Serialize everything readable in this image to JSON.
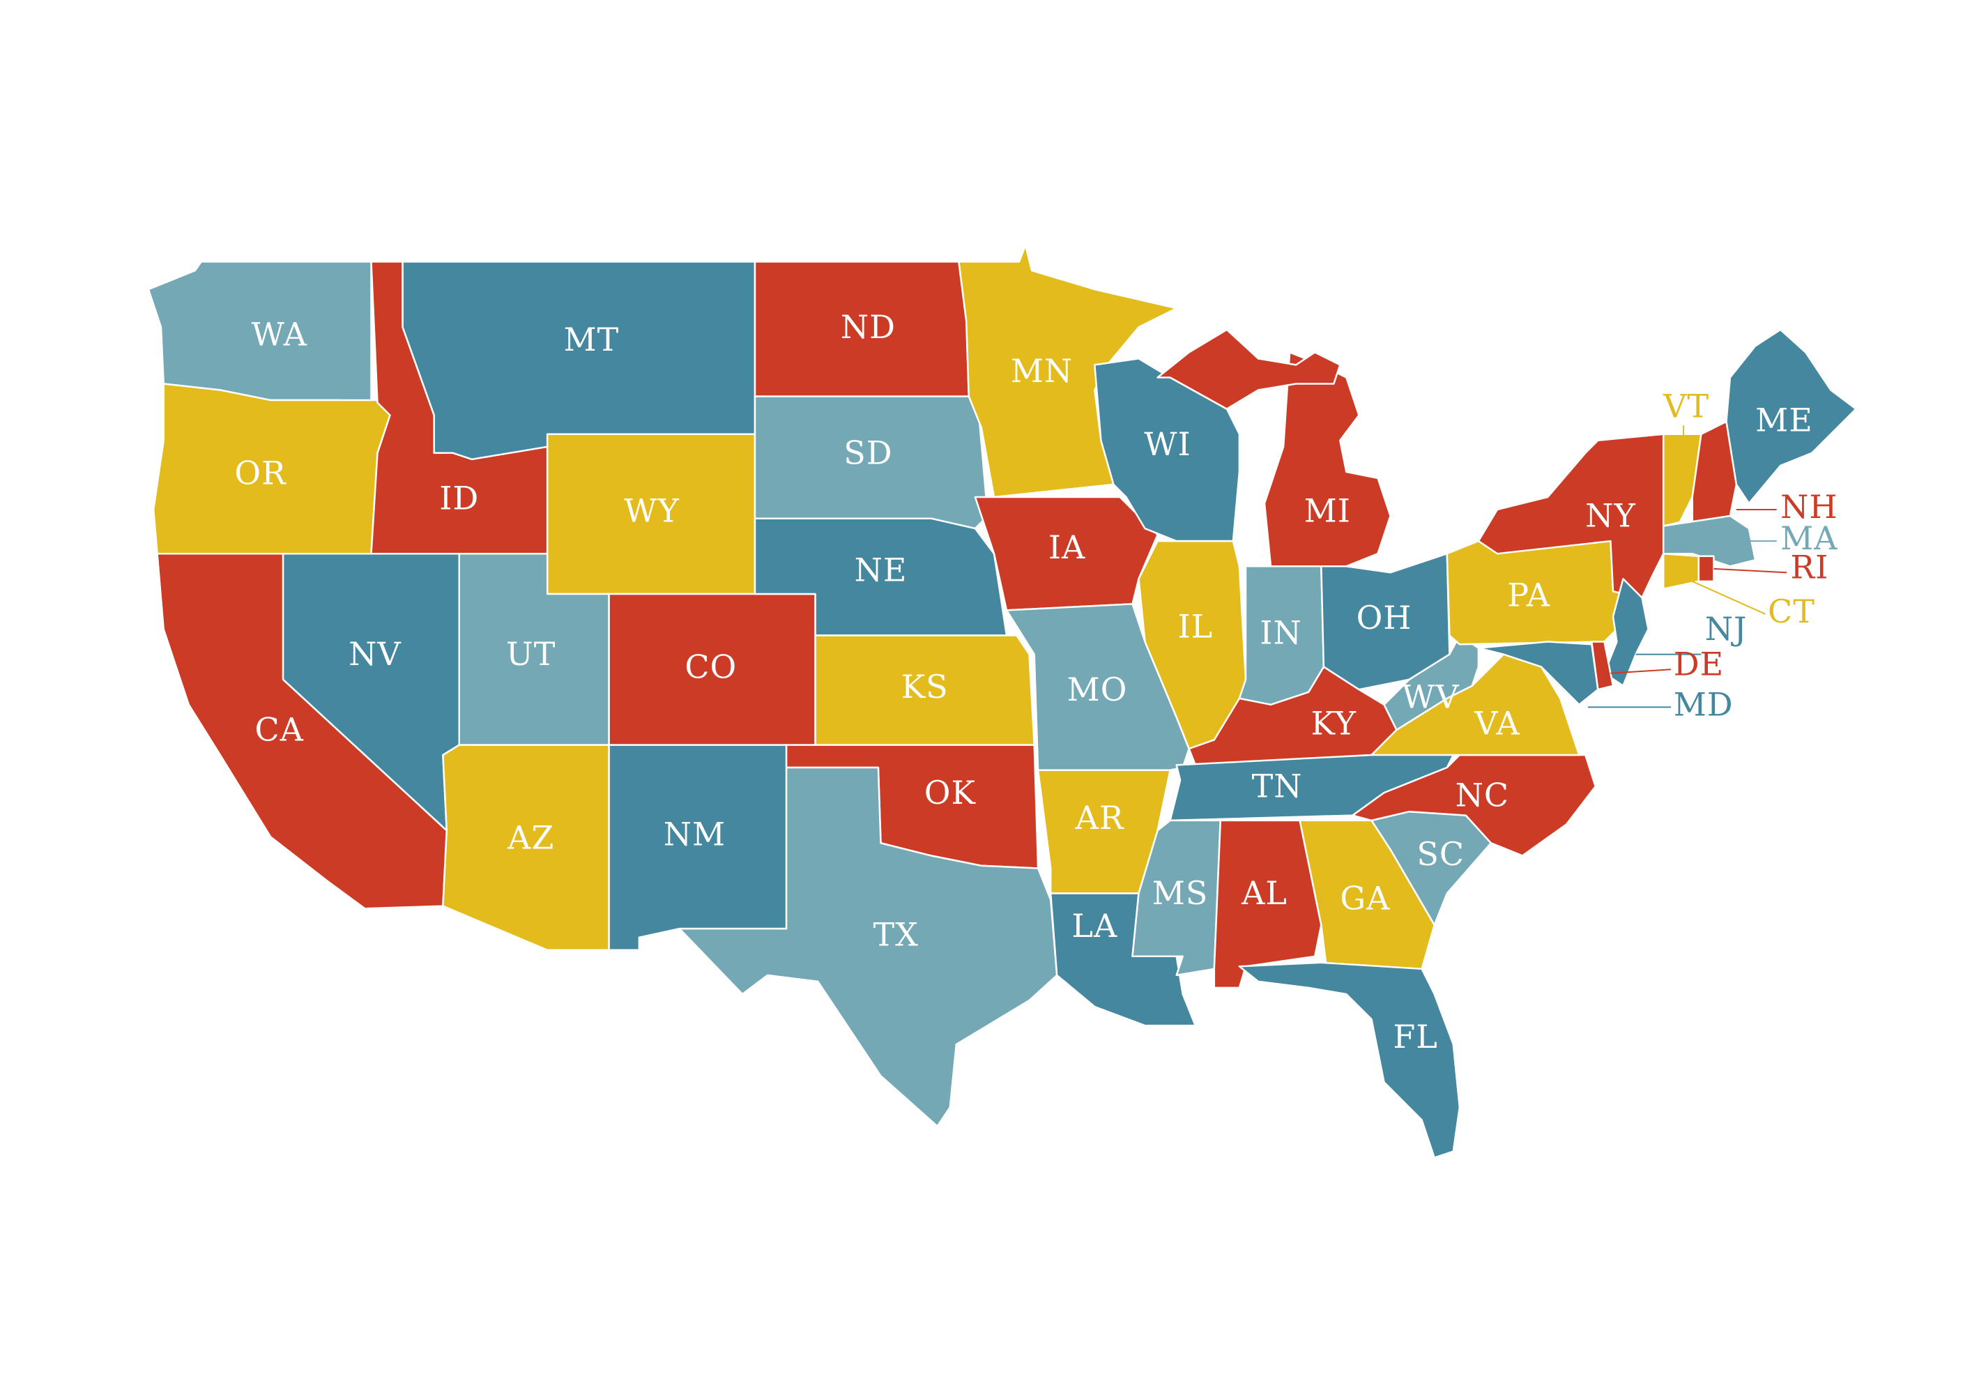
{
  "map": {
    "palette": {
      "red": "#cc3b25",
      "yellow": "#e3bb1c",
      "dark_blue": "#44879f",
      "light_blue": "#74a8b5"
    },
    "states": [
      {
        "abbr": "WA",
        "color": "light_blue"
      },
      {
        "abbr": "OR",
        "color": "yellow"
      },
      {
        "abbr": "CA",
        "color": "red"
      },
      {
        "abbr": "ID",
        "color": "red"
      },
      {
        "abbr": "NV",
        "color": "dark_blue"
      },
      {
        "abbr": "MT",
        "color": "dark_blue"
      },
      {
        "abbr": "WY",
        "color": "yellow"
      },
      {
        "abbr": "UT",
        "color": "light_blue"
      },
      {
        "abbr": "AZ",
        "color": "yellow"
      },
      {
        "abbr": "CO",
        "color": "red"
      },
      {
        "abbr": "NM",
        "color": "dark_blue"
      },
      {
        "abbr": "ND",
        "color": "red"
      },
      {
        "abbr": "SD",
        "color": "light_blue"
      },
      {
        "abbr": "NE",
        "color": "dark_blue"
      },
      {
        "abbr": "KS",
        "color": "yellow"
      },
      {
        "abbr": "OK",
        "color": "red"
      },
      {
        "abbr": "TX",
        "color": "light_blue"
      },
      {
        "abbr": "MN",
        "color": "yellow"
      },
      {
        "abbr": "IA",
        "color": "red"
      },
      {
        "abbr": "MO",
        "color": "light_blue"
      },
      {
        "abbr": "AR",
        "color": "yellow"
      },
      {
        "abbr": "LA",
        "color": "dark_blue"
      },
      {
        "abbr": "WI",
        "color": "dark_blue"
      },
      {
        "abbr": "IL",
        "color": "yellow"
      },
      {
        "abbr": "MI",
        "color": "red"
      },
      {
        "abbr": "IN",
        "color": "light_blue"
      },
      {
        "abbr": "OH",
        "color": "dark_blue"
      },
      {
        "abbr": "KY",
        "color": "red"
      },
      {
        "abbr": "TN",
        "color": "dark_blue"
      },
      {
        "abbr": "MS",
        "color": "light_blue"
      },
      {
        "abbr": "AL",
        "color": "red"
      },
      {
        "abbr": "GA",
        "color": "yellow"
      },
      {
        "abbr": "FL",
        "color": "dark_blue"
      },
      {
        "abbr": "SC",
        "color": "light_blue"
      },
      {
        "abbr": "NC",
        "color": "red"
      },
      {
        "abbr": "VA",
        "color": "yellow"
      },
      {
        "abbr": "WV",
        "color": "light_blue"
      },
      {
        "abbr": "PA",
        "color": "yellow"
      },
      {
        "abbr": "NY",
        "color": "red"
      },
      {
        "abbr": "VT",
        "color": "yellow"
      },
      {
        "abbr": "NH",
        "color": "red"
      },
      {
        "abbr": "ME",
        "color": "dark_blue"
      },
      {
        "abbr": "MA",
        "color": "light_blue"
      },
      {
        "abbr": "RI",
        "color": "red"
      },
      {
        "abbr": "CT",
        "color": "yellow"
      },
      {
        "abbr": "NJ",
        "color": "dark_blue"
      },
      {
        "abbr": "DE",
        "color": "red"
      },
      {
        "abbr": "MD",
        "color": "dark_blue"
      }
    ]
  }
}
